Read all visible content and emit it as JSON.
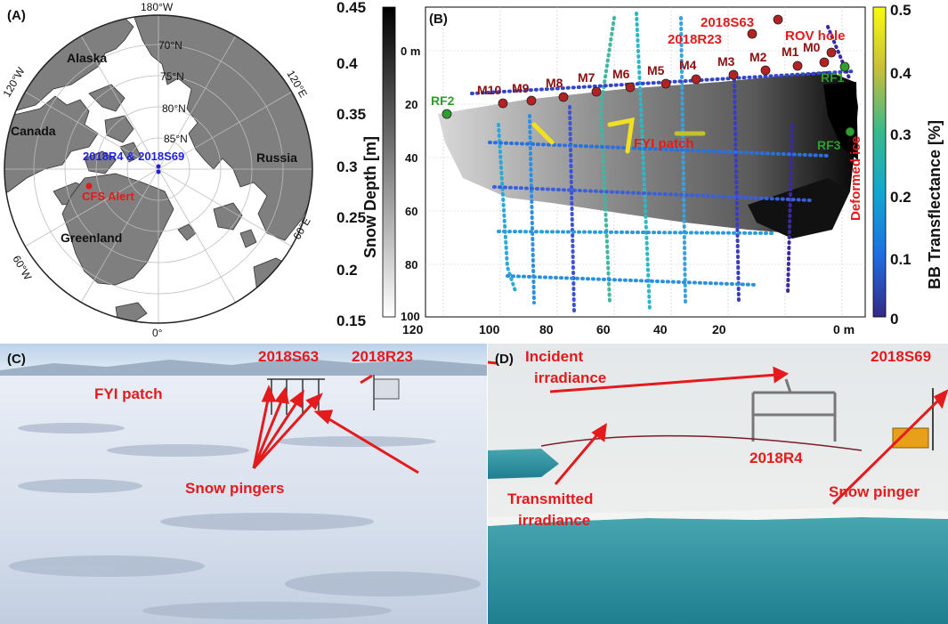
{
  "panel_a": {
    "label": "(A)",
    "top_meridian": "180°W",
    "lon_labels": {
      "w120": "120°W",
      "e120": "120°E",
      "w60": "60°W",
      "e60": "60°E",
      "zero": "0°"
    },
    "lat_labels": [
      "70°N",
      "75°N",
      "80°N",
      "85°N"
    ],
    "regions": [
      "Alaska",
      "Canada",
      "Russia",
      "Greenland"
    ],
    "sites": "2018R4 & 2018S69",
    "station": "CFS Alert",
    "colors": {
      "land": "#7f7f7f",
      "ocean": "#ffffff",
      "site": "#1f1fe0",
      "station": "#e41a1c"
    }
  },
  "panel_b": {
    "label": "(B)",
    "colorbar_gray": {
      "title": "Snow Depth [m]",
      "ticks": [
        "0.45",
        "0.4",
        "0.35",
        "0.3",
        "0.25",
        "0.2",
        "0.15"
      ]
    },
    "colorbar_color": {
      "title": "BB Transflectance [%]",
      "ticks": [
        "0.5",
        "0.4",
        "0.3",
        "0.2",
        "0.1",
        "0"
      ]
    },
    "x_ticks": [
      "120",
      "100",
      "80",
      "60",
      "40",
      "20",
      "0 m"
    ],
    "y_ticks": [
      "0 m",
      "20",
      "40",
      "60",
      "80",
      "100"
    ],
    "markers": [
      "M10",
      "M9",
      "M8",
      "M7",
      "M6",
      "M5",
      "M4",
      "M3",
      "M2",
      "M1",
      "M0"
    ],
    "ref_points": [
      "RF2",
      "RF1",
      "RF3"
    ],
    "labels": {
      "s63": "2018S63",
      "r23": "2018R23",
      "rov": "ROV hole",
      "fyi": "FYI patch",
      "deformed": "Deformed ice"
    },
    "colors": {
      "marker": "#b22222",
      "ref": "#2e9e2e",
      "annotation": "#e41a1c"
    }
  },
  "panel_c": {
    "label": "(C)",
    "labels": {
      "s63": "2018S63",
      "r23": "2018R23",
      "fyi": "FYI patch",
      "pingers": "Snow pingers"
    }
  },
  "panel_d": {
    "label": "(D)",
    "labels": {
      "incident": "Incident\nirradiance",
      "s69": "2018S69",
      "r4": "2018R4",
      "transmitted": "Transmitted\nirradiance",
      "pinger": "Snow pinger"
    }
  }
}
